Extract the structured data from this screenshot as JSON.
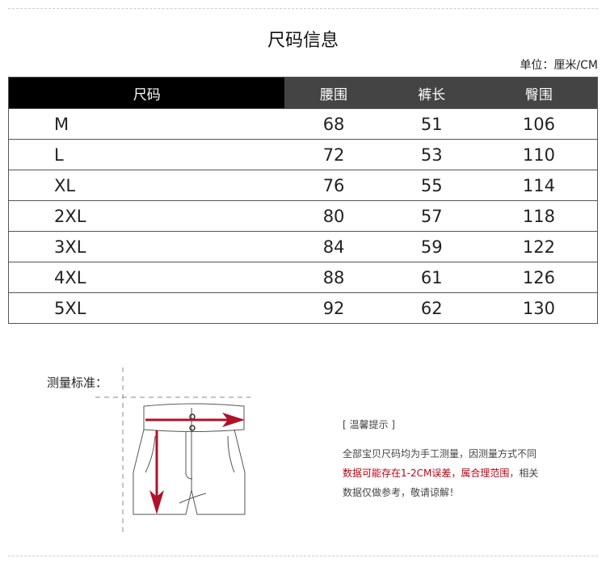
{
  "title": "尺码信息",
  "unit": "单位：厘米/CM",
  "table": {
    "headers": [
      "尺码",
      "腰围",
      "裤长",
      "臀围"
    ],
    "rows": [
      [
        "M",
        "68",
        "51",
        "106"
      ],
      [
        "L",
        "72",
        "53",
        "110"
      ],
      [
        "XL",
        "76",
        "55",
        "114"
      ],
      [
        "2XL",
        "80",
        "57",
        "118"
      ],
      [
        "3XL",
        "84",
        "59",
        "122"
      ],
      [
        "4XL",
        "88",
        "61",
        "126"
      ],
      [
        "5XL",
        "92",
        "62",
        "130"
      ]
    ]
  },
  "measure_label": "测量标准：",
  "tips": {
    "heading": "[ 温馨提示 ]",
    "line1": "全部宝贝尺码均为手工测量，因测量方式不同",
    "line2_red": "数据可能存在1-2CM误差，属合理范围",
    "line2_rest": "，相关",
    "line3": "数据仅做参考，敬请谅解！"
  },
  "colors": {
    "header_dark": "#444444",
    "header_first": "#000000",
    "accent_red": "#c00010"
  },
  "icons": {
    "diagram": "shorts-measurement-illustration"
  }
}
